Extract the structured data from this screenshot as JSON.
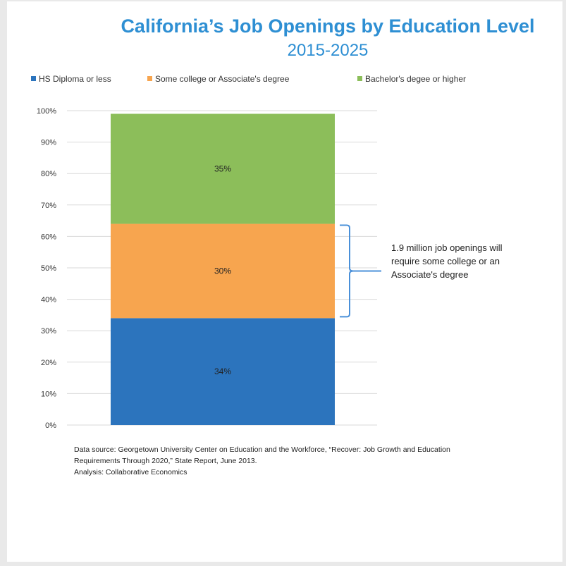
{
  "chart_data": {
    "type": "bar",
    "stacked": true,
    "title": "California’s Job Openings by Education Level",
    "subtitle": "2015-2025",
    "categories": [
      ""
    ],
    "series": [
      {
        "name": "HS Diploma or less",
        "values": [
          34
        ],
        "label": "34%",
        "color": "#2c74bd"
      },
      {
        "name": "Some college or Associate's degree",
        "values": [
          30
        ],
        "label": "30%",
        "color": "#f7a54f"
      },
      {
        "name": "Bachelor's degee or higher",
        "values": [
          35
        ],
        "label": "35%",
        "color": "#8cbe5a"
      }
    ],
    "ylim": [
      0,
      100
    ],
    "yticks": [
      "0%",
      "10%",
      "20%",
      "30%",
      "40%",
      "50%",
      "60%",
      "70%",
      "80%",
      "90%",
      "100%"
    ],
    "grid": true,
    "legend_position": "top",
    "annotation": "1.9 million job openings will require some college or an Associate's degree"
  },
  "footer": {
    "source": "Data source: Georgetown University Center on Education and the Workforce, “Recover: Job Growth and Education Requirements Through 2020,” State Report, June 2013.",
    "analysis": "Analysis: Collaborative Economics"
  },
  "colors": {
    "title": "#2e8fd3",
    "bracket": "#4a90d9",
    "grid": "#d9d9d9"
  }
}
